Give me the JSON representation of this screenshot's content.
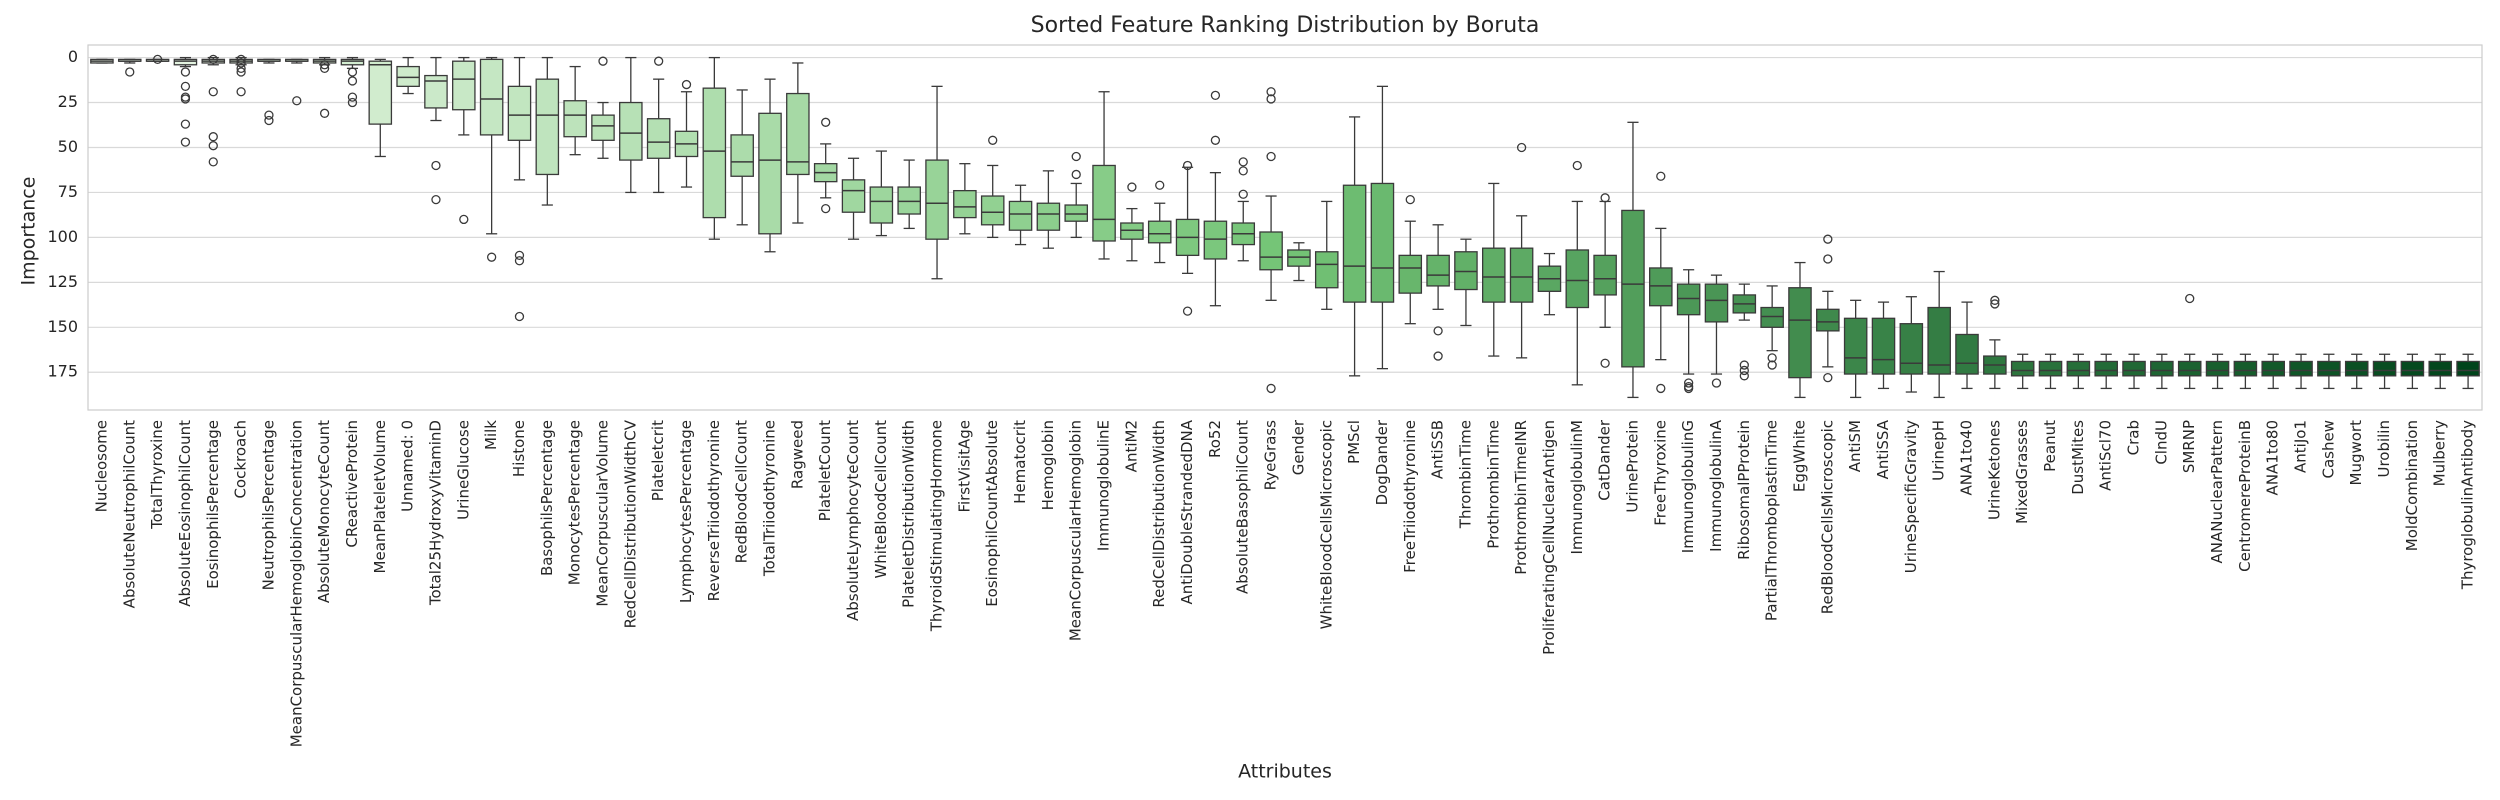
{
  "chart_data": {
    "type": "box",
    "title": "Sorted Feature Ranking Distribution by Boruta",
    "x_label": "Attributes",
    "y_label": "Importance",
    "ylim": [
      -7,
      196
    ],
    "y_inverted": true,
    "yticks": [
      0,
      25,
      50,
      75,
      100,
      125,
      150,
      175
    ],
    "grid": true,
    "palette": [
      "#edf8e9",
      "#74c476",
      "#00441b"
    ],
    "categories": [
      "Nucleosome",
      "AbsoluteNeutrophilCount",
      "TotalThyroxine",
      "AbsoluteEosinophilCount",
      "EosinophilsPercentage",
      "Cockroach",
      "NeutrophilsPercentage",
      "MeanCorpuscularHemoglobinConcentration",
      "AbsoluteMonocyteCount",
      "CReactiveProtein",
      "MeanPlateletVolume",
      "Unnamed: 0",
      "Total25HydroxyVitaminD",
      "UrineGlucose",
      "Milk",
      "Histone",
      "BasophilsPercentage",
      "MonocytesPercentage",
      "MeanCorpuscularVolume",
      "RedCellDistributionWidthCV",
      "Plateletcrit",
      "LymphocytesPercentage",
      "ReverseTriiodothyronine",
      "RedBloodCellCount",
      "TotalTriiodothyronine",
      "Ragweed",
      "PlateletCount",
      "AbsoluteLymphocyteCount",
      "WhiteBloodCellCount",
      "PlateletDistributionWidth",
      "ThyroidStimulatingHormone",
      "FirstVisitAge",
      "EosinophilCountAbsolute",
      "Hematocrit",
      "Hemoglobin",
      "MeanCorpuscularHemoglobin",
      "ImmunoglobulinE",
      "AntiM2",
      "RedCellDistributionWidth",
      "AntiDoubleStrandedDNA",
      "Ro52",
      "AbsoluteBasophilCount",
      "RyeGrass",
      "Gender",
      "WhiteBloodCellsMicroscopic",
      "PMScl",
      "DogDander",
      "FreeTriiodothyronine",
      "AntiSSB",
      "ThrombinTime",
      "ProthrombinTime",
      "ProthrombinTimeINR",
      "ProliferatingCellNuclearAntigen",
      "ImmunoglobulinM",
      "CatDander",
      "UrineProtein",
      "FreeThyroxine",
      "ImmunoglobulinG",
      "ImmunoglobulinA",
      "RibosomalPProtein",
      "PartialThromboplastinTime",
      "EggWhite",
      "RedBloodCellsMicroscopic",
      "AntiSM",
      "AntiSSA",
      "UrineSpecificGravity",
      "UrinepH",
      "ANA1to40",
      "UrineKetones",
      "MixedGrasses",
      "Peanut",
      "DustMites",
      "AntiScl70",
      "Crab",
      "ClndU",
      "SMRNP",
      "ANANuclearPattern",
      "CentromereProteinB",
      "ANA1to80",
      "AntiJo1",
      "Cashew",
      "Mugwort",
      "Urobilin",
      "MoldCombination",
      "Mulberry",
      "ThyroglobulinAntibody"
    ],
    "boxes": [
      {
        "lo": 1,
        "q1": 1,
        "med": 2,
        "q3": 3,
        "hi": 3,
        "out": []
      },
      {
        "lo": 1,
        "q1": 1,
        "med": 2,
        "q3": 2,
        "hi": 3,
        "out": [
          8
        ]
      },
      {
        "lo": 1,
        "q1": 1,
        "med": 2,
        "q3": 2,
        "hi": 2,
        "out": [
          1
        ]
      },
      {
        "lo": 0,
        "q1": 1,
        "med": 2,
        "q3": 4,
        "hi": 5,
        "out": [
          8,
          16,
          22,
          23,
          37,
          47
        ]
      },
      {
        "lo": 0,
        "q1": 1,
        "med": 2,
        "q3": 3,
        "hi": 4,
        "out": [
          1,
          19,
          44,
          49,
          58
        ]
      },
      {
        "lo": 0,
        "q1": 1,
        "med": 2,
        "q3": 3,
        "hi": 4,
        "out": [
          1,
          3,
          6,
          8,
          19
        ]
      },
      {
        "lo": 1,
        "q1": 1,
        "med": 2,
        "q3": 2,
        "hi": 3,
        "out": [
          32,
          35
        ]
      },
      {
        "lo": 1,
        "q1": 1,
        "med": 2,
        "q3": 2,
        "hi": 3,
        "out": [
          24
        ]
      },
      {
        "lo": 0,
        "q1": 1,
        "med": 2,
        "q3": 3,
        "hi": 4,
        "out": [
          4,
          6,
          31
        ]
      },
      {
        "lo": 0,
        "q1": 1,
        "med": 2,
        "q3": 4,
        "hi": 6,
        "out": [
          8,
          13,
          22,
          25
        ]
      },
      {
        "lo": 1,
        "q1": 2,
        "med": 4,
        "q3": 37,
        "hi": 55,
        "out": []
      },
      {
        "lo": 0,
        "q1": 5,
        "med": 11,
        "q3": 16,
        "hi": 20,
        "out": []
      },
      {
        "lo": 0,
        "q1": 10,
        "med": 13,
        "q3": 28,
        "hi": 35,
        "out": [
          60,
          79
        ]
      },
      {
        "lo": 0,
        "q1": 2,
        "med": 12,
        "q3": 29,
        "hi": 43,
        "out": [
          90
        ]
      },
      {
        "lo": 0,
        "q1": 1,
        "med": 23,
        "q3": 43,
        "hi": 98,
        "out": [
          111
        ]
      },
      {
        "lo": 0,
        "q1": 16,
        "med": 32,
        "q3": 46,
        "hi": 68,
        "out": [
          110,
          113,
          144
        ]
      },
      {
        "lo": 0,
        "q1": 12,
        "med": 32,
        "q3": 65,
        "hi": 82,
        "out": []
      },
      {
        "lo": 5,
        "q1": 24,
        "med": 32,
        "q3": 44,
        "hi": 54,
        "out": []
      },
      {
        "lo": 25,
        "q1": 32,
        "med": 38,
        "q3": 46,
        "hi": 56,
        "out": [
          2
        ]
      },
      {
        "lo": 0,
        "q1": 25,
        "med": 42,
        "q3": 57,
        "hi": 75,
        "out": []
      },
      {
        "lo": 12,
        "q1": 34,
        "med": 47,
        "q3": 56,
        "hi": 75,
        "out": [
          2
        ]
      },
      {
        "lo": 19,
        "q1": 41,
        "med": 48,
        "q3": 55,
        "hi": 72,
        "out": [
          15
        ]
      },
      {
        "lo": 0,
        "q1": 17,
        "med": 52,
        "q3": 89,
        "hi": 101,
        "out": []
      },
      {
        "lo": 18,
        "q1": 43,
        "med": 58,
        "q3": 66,
        "hi": 93,
        "out": []
      },
      {
        "lo": 12,
        "q1": 31,
        "med": 57,
        "q3": 98,
        "hi": 108,
        "out": []
      },
      {
        "lo": 3,
        "q1": 20,
        "med": 58,
        "q3": 65,
        "hi": 92,
        "out": []
      },
      {
        "lo": 48,
        "q1": 59,
        "med": 64,
        "q3": 69,
        "hi": 78,
        "out": [
          36,
          84
        ]
      },
      {
        "lo": 56,
        "q1": 68,
        "med": 74,
        "q3": 86,
        "hi": 101,
        "out": []
      },
      {
        "lo": 52,
        "q1": 72,
        "med": 80,
        "q3": 92,
        "hi": 99,
        "out": []
      },
      {
        "lo": 57,
        "q1": 72,
        "med": 80,
        "q3": 87,
        "hi": 95,
        "out": []
      },
      {
        "lo": 16,
        "q1": 57,
        "med": 81,
        "q3": 101,
        "hi": 123,
        "out": []
      },
      {
        "lo": 59,
        "q1": 74,
        "med": 83,
        "q3": 89,
        "hi": 98,
        "out": []
      },
      {
        "lo": 60,
        "q1": 77,
        "med": 86,
        "q3": 93,
        "hi": 100,
        "out": [
          46
        ]
      },
      {
        "lo": 71,
        "q1": 80,
        "med": 87,
        "q3": 96,
        "hi": 104,
        "out": []
      },
      {
        "lo": 63,
        "q1": 81,
        "med": 87,
        "q3": 96,
        "hi": 106,
        "out": []
      },
      {
        "lo": 70,
        "q1": 82,
        "med": 87,
        "q3": 91,
        "hi": 100,
        "out": [
          55,
          65
        ]
      },
      {
        "lo": 19,
        "q1": 60,
        "med": 90,
        "q3": 102,
        "hi": 112,
        "out": []
      },
      {
        "lo": 84,
        "q1": 92,
        "med": 96,
        "q3": 101,
        "hi": 113,
        "out": [
          72
        ]
      },
      {
        "lo": 81,
        "q1": 91,
        "med": 98,
        "q3": 103,
        "hi": 114,
        "out": [
          71
        ]
      },
      {
        "lo": 61,
        "q1": 90,
        "med": 100,
        "q3": 110,
        "hi": 120,
        "out": [
          60,
          141
        ]
      },
      {
        "lo": 64,
        "q1": 91,
        "med": 101,
        "q3": 112,
        "hi": 138,
        "out": [
          21,
          46
        ]
      },
      {
        "lo": 80,
        "q1": 92,
        "med": 98,
        "q3": 104,
        "hi": 113,
        "out": [
          58,
          63,
          76
        ]
      },
      {
        "lo": 77,
        "q1": 97,
        "med": 111,
        "q3": 118,
        "hi": 135,
        "out": [
          19,
          23,
          55,
          184
        ]
      },
      {
        "lo": 103,
        "q1": 107,
        "med": 111,
        "q3": 116,
        "hi": 124,
        "out": []
      },
      {
        "lo": 80,
        "q1": 108,
        "med": 115,
        "q3": 128,
        "hi": 140,
        "out": []
      },
      {
        "lo": 33,
        "q1": 71,
        "med": 116,
        "q3": 136,
        "hi": 177,
        "out": []
      },
      {
        "lo": 16,
        "q1": 70,
        "med": 117,
        "q3": 136,
        "hi": 173,
        "out": []
      },
      {
        "lo": 91,
        "q1": 110,
        "med": 117,
        "q3": 131,
        "hi": 148,
        "out": [
          79
        ]
      },
      {
        "lo": 93,
        "q1": 110,
        "med": 121,
        "q3": 127,
        "hi": 140,
        "out": [
          152,
          166
        ]
      },
      {
        "lo": 101,
        "q1": 108,
        "med": 119,
        "q3": 129,
        "hi": 149,
        "out": []
      },
      {
        "lo": 70,
        "q1": 106,
        "med": 122,
        "q3": 136,
        "hi": 166,
        "out": []
      },
      {
        "lo": 88,
        "q1": 106,
        "med": 122,
        "q3": 136,
        "hi": 167,
        "out": [
          50
        ]
      },
      {
        "lo": 109,
        "q1": 116,
        "med": 123,
        "q3": 130,
        "hi": 143,
        "out": []
      },
      {
        "lo": 80,
        "q1": 107,
        "med": 124,
        "q3": 139,
        "hi": 182,
        "out": [
          60
        ]
      },
      {
        "lo": 80,
        "q1": 110,
        "med": 123,
        "q3": 132,
        "hi": 150,
        "out": [
          78,
          170
        ]
      },
      {
        "lo": 36,
        "q1": 85,
        "med": 126,
        "q3": 172,
        "hi": 189,
        "out": []
      },
      {
        "lo": 95,
        "q1": 117,
        "med": 127,
        "q3": 138,
        "hi": 168,
        "out": [
          66,
          184
        ]
      },
      {
        "lo": 118,
        "q1": 126,
        "med": 134,
        "q3": 143,
        "hi": 176,
        "out": [
          181,
          183,
          184
        ]
      },
      {
        "lo": 121,
        "q1": 126,
        "med": 135,
        "q3": 147,
        "hi": 176,
        "out": [
          181
        ]
      },
      {
        "lo": 126,
        "q1": 132,
        "med": 137,
        "q3": 142,
        "hi": 146,
        "out": [
          171,
          174,
          177
        ]
      },
      {
        "lo": 127,
        "q1": 139,
        "med": 144,
        "q3": 150,
        "hi": 163,
        "out": [
          167,
          171
        ]
      },
      {
        "lo": 114,
        "q1": 128,
        "med": 146,
        "q3": 178,
        "hi": 189,
        "out": []
      },
      {
        "lo": 130,
        "q1": 140,
        "med": 147,
        "q3": 152,
        "hi": 172,
        "out": [
          101,
          112,
          178
        ]
      },
      {
        "lo": 135,
        "q1": 145,
        "med": 167,
        "q3": 176,
        "hi": 189,
        "out": []
      },
      {
        "lo": 136,
        "q1": 145,
        "med": 168,
        "q3": 176,
        "hi": 184,
        "out": []
      },
      {
        "lo": 133,
        "q1": 148,
        "med": 170,
        "q3": 176,
        "hi": 186,
        "out": []
      },
      {
        "lo": 119,
        "q1": 139,
        "med": 171,
        "q3": 176,
        "hi": 189,
        "out": []
      },
      {
        "lo": 136,
        "q1": 154,
        "med": 170,
        "q3": 176,
        "hi": 184,
        "out": []
      },
      {
        "lo": 157,
        "q1": 166,
        "med": 171,
        "q3": 176,
        "hi": 184,
        "out": [
          135,
          137
        ]
      },
      {
        "lo": 165,
        "q1": 169,
        "med": 174,
        "q3": 177,
        "hi": 184,
        "out": []
      },
      {
        "lo": 165,
        "q1": 169,
        "med": 174,
        "q3": 177,
        "hi": 184,
        "out": []
      },
      {
        "lo": 165,
        "q1": 169,
        "med": 174,
        "q3": 177,
        "hi": 184,
        "out": []
      },
      {
        "lo": 165,
        "q1": 169,
        "med": 174,
        "q3": 177,
        "hi": 184,
        "out": []
      },
      {
        "lo": 165,
        "q1": 169,
        "med": 174,
        "q3": 177,
        "hi": 184,
        "out": []
      },
      {
        "lo": 165,
        "q1": 169,
        "med": 174,
        "q3": 177,
        "hi": 184,
        "out": []
      },
      {
        "lo": 165,
        "q1": 169,
        "med": 174,
        "q3": 177,
        "hi": 184,
        "out": [
          134
        ]
      },
      {
        "lo": 165,
        "q1": 169,
        "med": 174,
        "q3": 177,
        "hi": 184,
        "out": []
      },
      {
        "lo": 165,
        "q1": 169,
        "med": 174,
        "q3": 177,
        "hi": 184,
        "out": []
      },
      {
        "lo": 165,
        "q1": 169,
        "med": 174,
        "q3": 177,
        "hi": 184,
        "out": []
      },
      {
        "lo": 165,
        "q1": 169,
        "med": 174,
        "q3": 177,
        "hi": 184,
        "out": []
      },
      {
        "lo": 165,
        "q1": 169,
        "med": 174,
        "q3": 177,
        "hi": 184,
        "out": []
      },
      {
        "lo": 165,
        "q1": 169,
        "med": 174,
        "q3": 177,
        "hi": 184,
        "out": []
      },
      {
        "lo": 165,
        "q1": 169,
        "med": 174,
        "q3": 177,
        "hi": 184,
        "out": []
      },
      {
        "lo": 165,
        "q1": 169,
        "med": 174,
        "q3": 177,
        "hi": 184,
        "out": []
      },
      {
        "lo": 165,
        "q1": 169,
        "med": 174,
        "q3": 177,
        "hi": 184,
        "out": []
      },
      {
        "lo": 165,
        "q1": 169,
        "med": 174,
        "q3": 177,
        "hi": 184,
        "out": []
      }
    ]
  }
}
